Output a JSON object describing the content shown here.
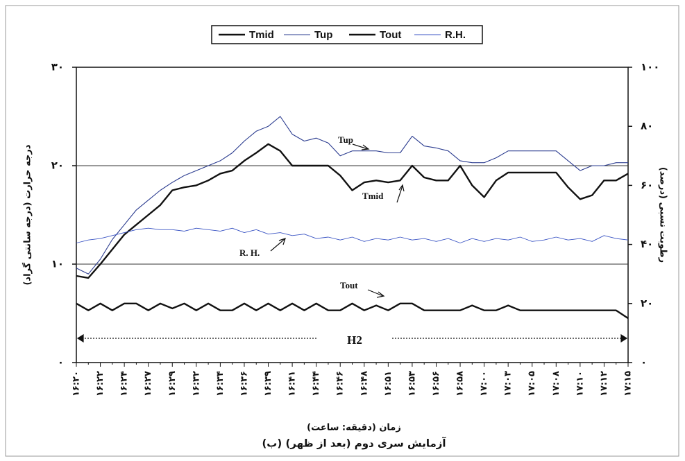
{
  "chart_data": {
    "type": "line",
    "caption": "(ب) آزمایش سری دوم (بعد از ظهر)",
    "xlabel": "زمان (دقیقه: ساعت)",
    "ylabel": "درجه حرارت (درجه سانتی گراد)",
    "y2label": "رطوبت نسبی (درصد)",
    "categories": [
      "۱۶:۲۰",
      null,
      "۱۶:۲۲",
      null,
      "۱۶:۲۴",
      null,
      "۱۶:۲۷",
      null,
      "۱۶:۲۹",
      null,
      "۱۶:۳۲",
      null,
      "۱۶:۳۴",
      null,
      "۱۶:۳۶",
      null,
      "۱۶:۳۹",
      null,
      "۱۶:۴۱",
      null,
      "۱۶:۴۴",
      null,
      "۱۶:۴۶",
      null,
      "۱۶:۴۸",
      null,
      "۱۶:۵۱",
      null,
      "۱۶:۵۳",
      null,
      "۱۶:۵۶",
      null,
      "۱۶:۵۸",
      null,
      "۱۷:۰۰",
      null,
      "۱۷:۰۳",
      null,
      "۱۷:۰۵",
      null,
      "۱۷:۰۸",
      null,
      "۱۷:۱۰",
      null,
      "۱۷:۱۲",
      null,
      "۱۷:۱۵"
    ],
    "ylim": [
      0,
      30
    ],
    "yticks": [
      {
        "value": 0,
        "label": "۰"
      },
      {
        "value": 10,
        "label": "۱۰"
      },
      {
        "value": 20,
        "label": "۲۰"
      },
      {
        "value": 30,
        "label": "۳۰"
      }
    ],
    "y2lim": [
      0,
      100
    ],
    "y2ticks": [
      {
        "value": 0,
        "label": "۰"
      },
      {
        "value": 20,
        "label": "۲۰"
      },
      {
        "value": 40,
        "label": "۴۰"
      },
      {
        "value": 60,
        "label": "۶۰"
      },
      {
        "value": 80,
        "label": "۸۰"
      },
      {
        "value": 100,
        "label": "۱۰۰"
      }
    ],
    "grid": true,
    "legend": "top",
    "series": [
      {
        "name": "Tmid",
        "color": "#111111",
        "values": [
          8.8,
          8.6,
          10,
          11.5,
          13,
          14,
          15,
          16,
          17.5,
          17.8,
          18,
          18.5,
          19.2,
          19.5,
          20.5,
          21.3,
          22.2,
          21.5,
          20,
          20,
          20,
          20,
          19,
          17.5,
          18.3,
          18.5,
          18.3,
          18.5,
          20,
          18.8,
          18.5,
          18.5,
          20,
          18,
          16.8,
          18.5,
          19.3,
          19.3,
          19.3,
          19.3,
          19.3,
          17.8,
          16.6,
          17,
          18.5,
          18.5,
          19.2
        ]
      },
      {
        "name": "Tup",
        "color": "#2a3b8f",
        "values": [
          9.6,
          9,
          10.5,
          12.5,
          14,
          15.5,
          16.5,
          17.5,
          18.3,
          19,
          19.5,
          20,
          20.5,
          21.3,
          22.5,
          23.5,
          24,
          25,
          23.2,
          22.5,
          22.8,
          22.3,
          21,
          21.5,
          21.5,
          21.5,
          21.3,
          21.3,
          23,
          22,
          21.8,
          21.5,
          20.5,
          20.3,
          20.3,
          20.8,
          21.5,
          21.5,
          21.5,
          21.5,
          21.5,
          20.5,
          19.5,
          20,
          20,
          20.3,
          20.3
        ]
      },
      {
        "name": "Tout",
        "color": "#111111",
        "values": [
          6,
          5.3,
          6,
          5.3,
          6,
          6,
          5.3,
          6,
          5.5,
          6,
          5.3,
          6,
          5.3,
          5.3,
          6,
          5.3,
          6,
          5.3,
          6,
          5.3,
          6,
          5.3,
          5.3,
          6,
          5.3,
          5.8,
          5.3,
          6,
          6,
          5.3,
          5.3,
          5.3,
          5.3,
          5.8,
          5.3,
          5.3,
          5.8,
          5.3,
          5.3,
          5.3,
          5.3,
          5.3,
          5.3,
          5.3,
          5.3,
          5.3,
          4.5
        ]
      },
      {
        "name": "R.H.",
        "color": "#3b55c4",
        "axis": "y2",
        "values": [
          40.5,
          41.5,
          42,
          43,
          44,
          45,
          45.5,
          45,
          45,
          44.5,
          45.5,
          45,
          44.5,
          45.5,
          44,
          45,
          43.5,
          44,
          43,
          43.5,
          42,
          42.5,
          41.5,
          42.5,
          41,
          42,
          41.5,
          42.5,
          41.5,
          42,
          41,
          42,
          40.5,
          42,
          41,
          42,
          41.5,
          42.5,
          41,
          41.5,
          42.5,
          41.5,
          42,
          41,
          43,
          42,
          41.5
        ]
      }
    ],
    "annotations": [
      "Tup",
      "Tmid",
      "R. H.",
      "Tout",
      "H2"
    ]
  }
}
